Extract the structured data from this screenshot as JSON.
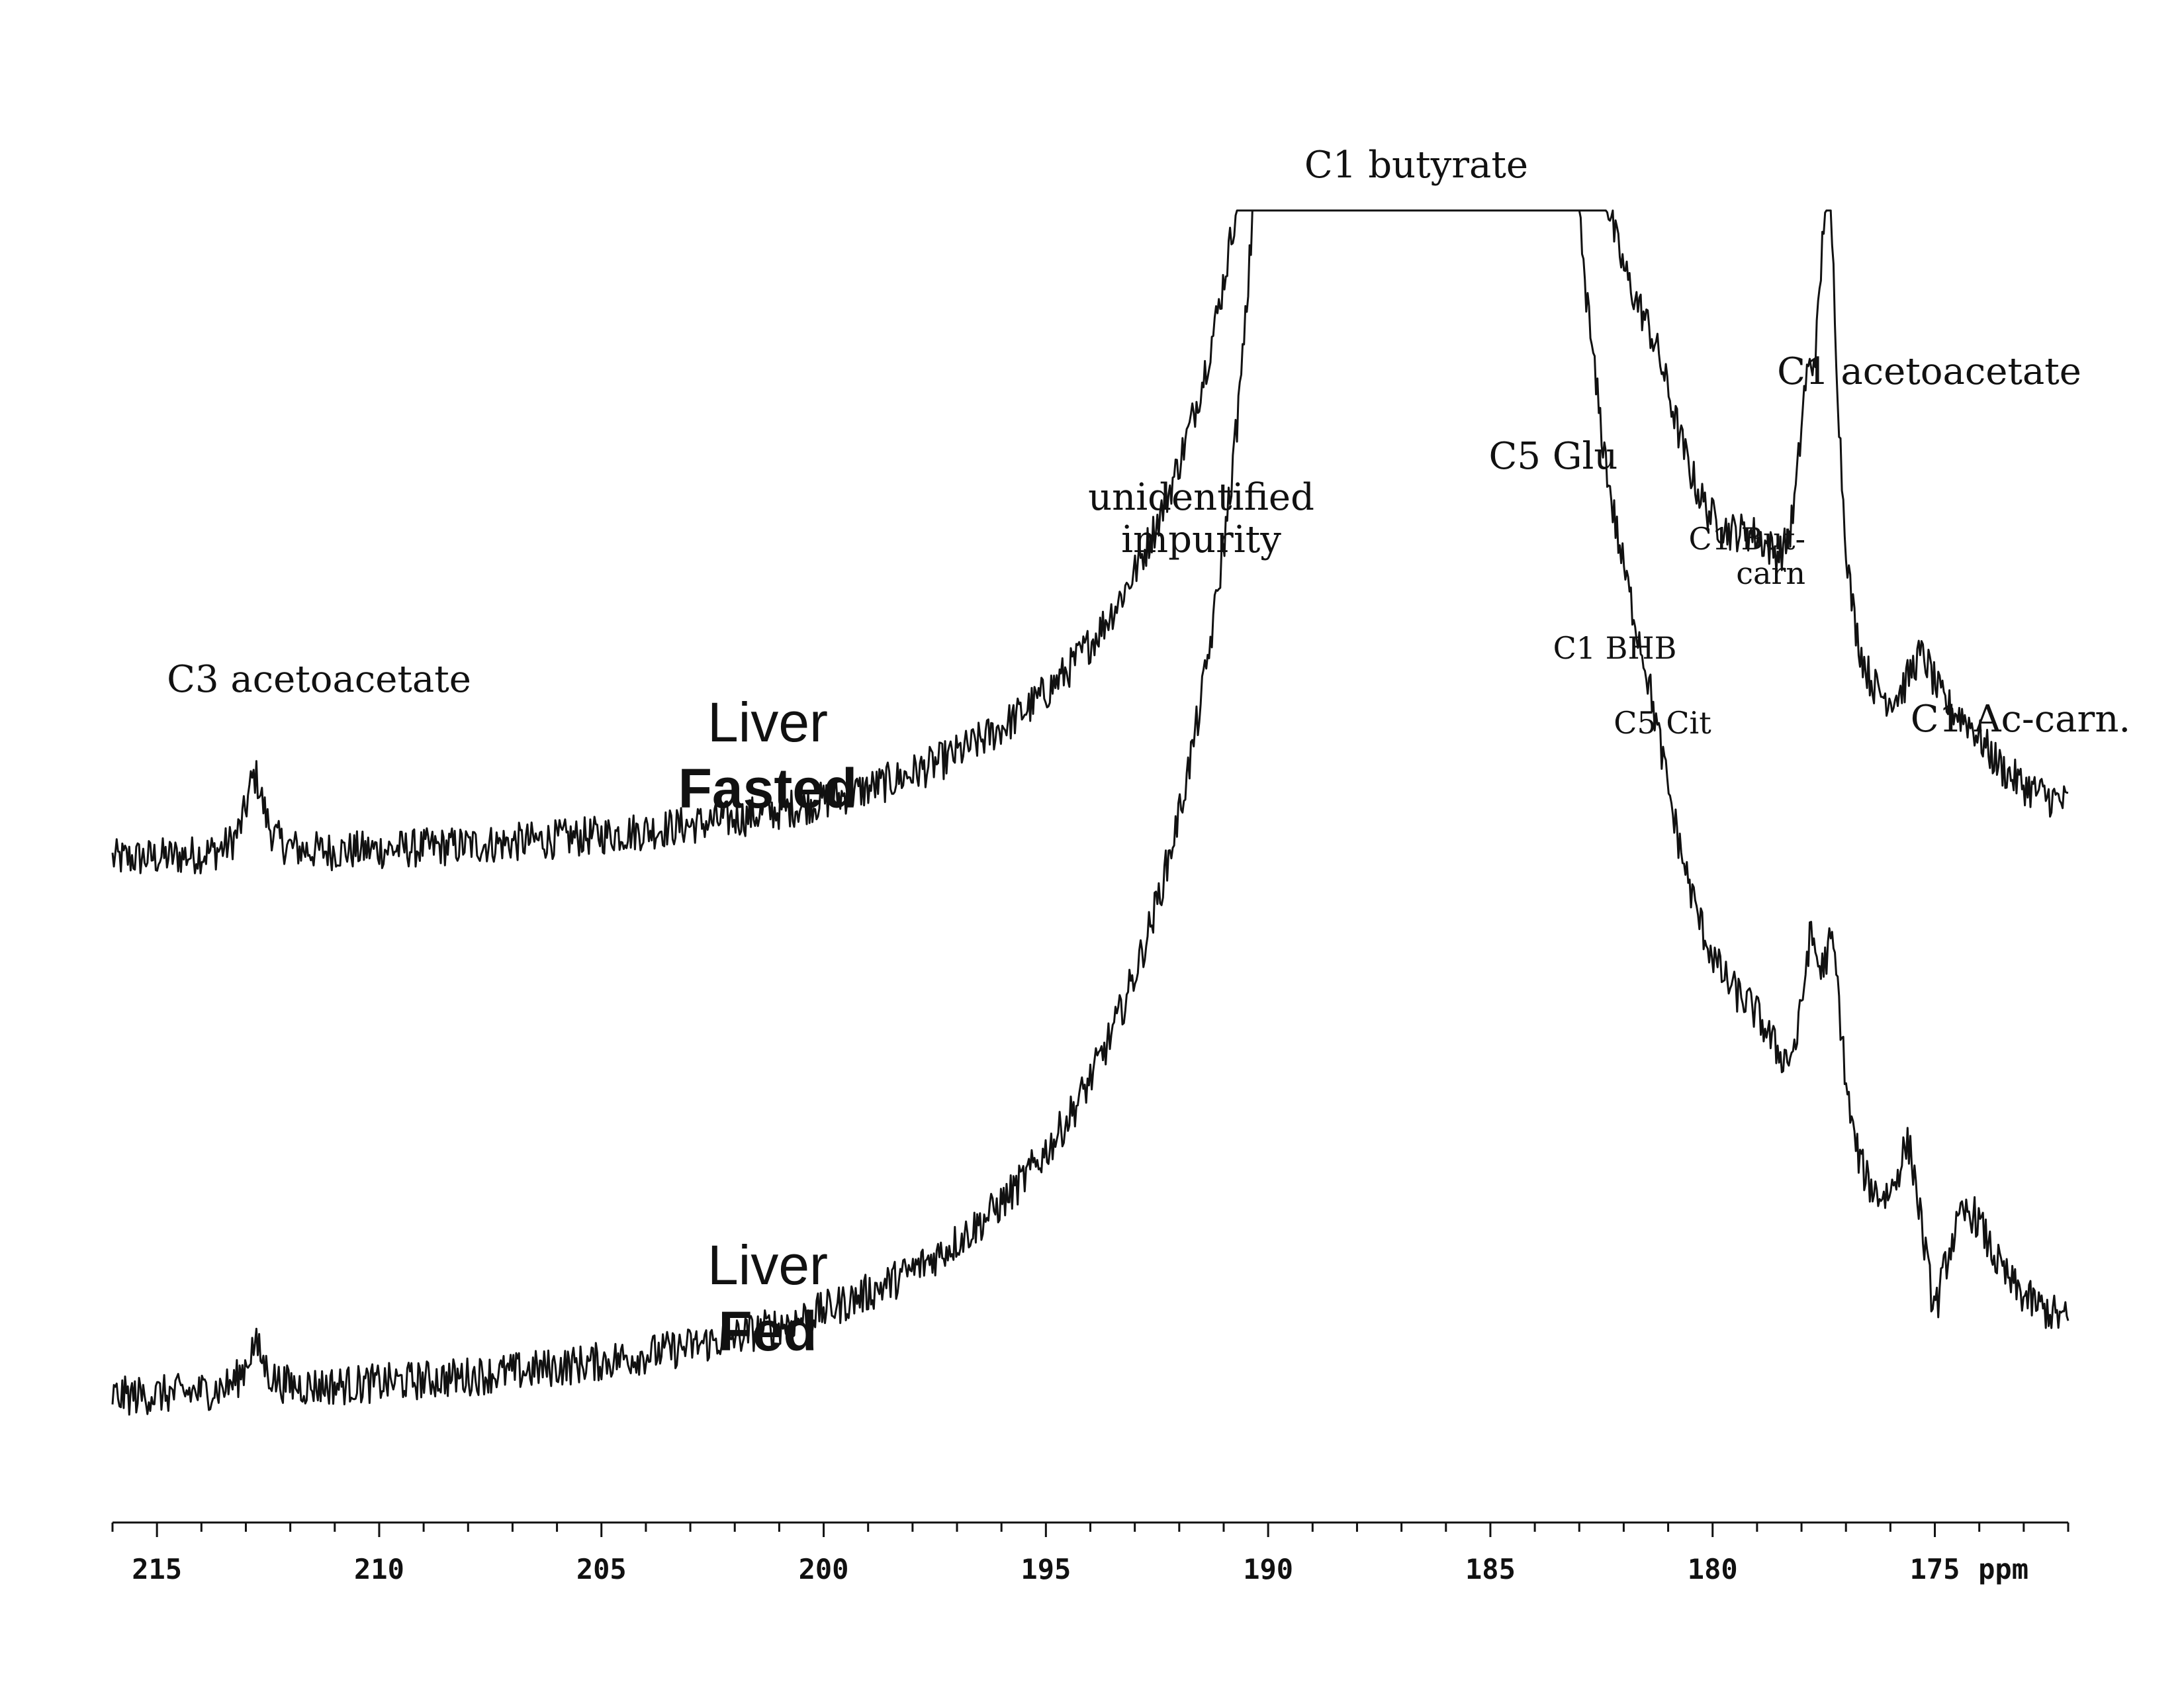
{
  "chart_data": {
    "type": "line",
    "title": "",
    "xlabel": "ppm",
    "ylabel": "",
    "xlim": [
      216,
      172
    ],
    "x_reversed": true,
    "grid": false,
    "x_ticks": [
      "215",
      "210",
      "205",
      "200",
      "195",
      "190",
      "185",
      "180",
      "175"
    ],
    "x_tick_values": [
      215,
      210,
      205,
      200,
      195,
      190,
      185,
      180,
      175
    ],
    "axis_unit_label": "ppm",
    "series": [
      {
        "name": "Liver Fasted",
        "label_line1": "Liver",
        "label_line2": "Fasted",
        "baseline": 0,
        "noise": 0.35,
        "saturated_above": 10,
        "peaks": [
          {
            "ppm": 212.8,
            "height": 1.4,
            "width": 0.25
          },
          {
            "ppm": 190.2,
            "height": 1.3,
            "width": 0.3
          },
          {
            "ppm": 189.0,
            "height": 1.6,
            "width": 0.5
          },
          {
            "ppm": 186.6,
            "height": 60,
            "width": 2.0
          },
          {
            "ppm": 183.5,
            "height": 1.2,
            "width": 0.6
          },
          {
            "ppm": 181.3,
            "height": 1.6,
            "width": 0.8
          },
          {
            "ppm": 179.0,
            "height": 1.5,
            "width": 0.9
          },
          {
            "ppm": 177.9,
            "height": 3.0,
            "width": 0.25
          },
          {
            "ppm": 177.4,
            "height": 8.4,
            "width": 0.28
          },
          {
            "ppm": 175.3,
            "height": 1.5,
            "width": 0.45
          },
          {
            "ppm": 174.3,
            "height": 0.8,
            "width": 0.7
          }
        ]
      },
      {
        "name": "Liver Fed",
        "label_line1": "Liver",
        "label_line2": "Fed",
        "baseline": 0,
        "noise": 0.35,
        "saturated_above": 22,
        "peaks": [
          {
            "ppm": 212.8,
            "height": 0.8,
            "width": 0.25
          },
          {
            "ppm": 190.0,
            "height": 4.0,
            "width": 0.25
          },
          {
            "ppm": 189.2,
            "height": 4.5,
            "width": 0.6
          },
          {
            "ppm": 186.6,
            "height": 80,
            "width": 2.1
          },
          {
            "ppm": 183.5,
            "height": 1.3,
            "width": 0.5
          },
          {
            "ppm": 181.5,
            "height": 1.5,
            "width": 0.8
          },
          {
            "ppm": 179.0,
            "height": 1.1,
            "width": 0.8
          },
          {
            "ppm": 177.8,
            "height": 2.8,
            "width": 0.25
          },
          {
            "ppm": 177.3,
            "height": 3.6,
            "width": 0.3
          },
          {
            "ppm": 175.6,
            "height": 1.8,
            "width": 0.3
          },
          {
            "ppm": 175.0,
            "height": -1.5,
            "width": 0.25
          },
          {
            "ppm": 174.2,
            "height": 1.4,
            "width": 0.6
          }
        ]
      }
    ],
    "annotations": [
      {
        "id": "c1-butyrate",
        "text": "C1 butyrate",
        "ppm": 186.6
      },
      {
        "id": "c1-acetoacetate",
        "text": "C1 acetoacetate",
        "ppm": 177.4
      },
      {
        "id": "c5-glu",
        "text": "C5 Glu",
        "ppm": 184.2
      },
      {
        "id": "unidentified-impurity",
        "line1": "unidentified",
        "line2": "impurity",
        "ppm": 189.8
      },
      {
        "id": "c1-but-carn",
        "line1": "C1 But-",
        "line2": "carn",
        "ppm": 178.0
      },
      {
        "id": "c1-bhb",
        "text": "C1 BHB",
        "ppm": 182.8
      },
      {
        "id": "c5-cit",
        "text": "C5 Cit",
        "ppm": 181.2
      },
      {
        "id": "c1-ac-carn",
        "text": "C1 Ac-carn.",
        "ppm": 174.3
      },
      {
        "id": "c3-acetoacetate",
        "text": "C3 acetoacetate",
        "ppm": 212.8
      }
    ]
  }
}
